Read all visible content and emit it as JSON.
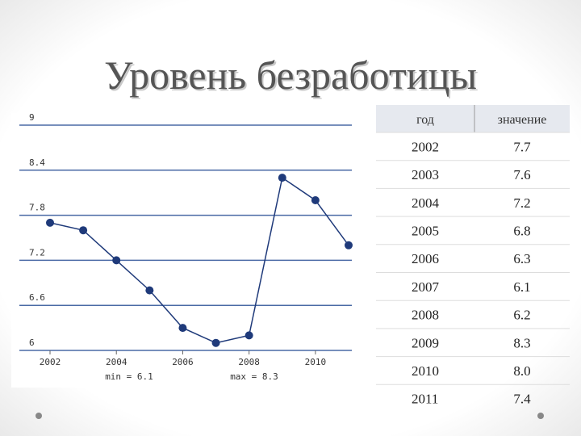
{
  "title": "Уровень безработицы",
  "chart_data": {
    "type": "line",
    "x": [
      2002,
      2003,
      2004,
      2005,
      2006,
      2007,
      2008,
      2009,
      2010,
      2011
    ],
    "values": [
      7.7,
      7.6,
      7.2,
      6.8,
      6.3,
      6.1,
      6.2,
      8.3,
      8.0,
      7.4
    ],
    "color": "#1f3a7a",
    "xlim": [
      2002,
      2011
    ],
    "xticks": [
      2002,
      2004,
      2006,
      2008,
      2010
    ],
    "ylim": [
      6,
      9
    ],
    "yticks": [
      6,
      6.6,
      7.2,
      7.8,
      8.4,
      9
    ],
    "grid": true,
    "annotations": [
      "min = 6.1",
      "max = 8.3"
    ]
  },
  "table": {
    "header": [
      "год",
      "значение"
    ],
    "rows": [
      [
        "2002",
        "7.7"
      ],
      [
        "2003",
        "7.6"
      ],
      [
        "2004",
        "7.2"
      ],
      [
        "2005",
        "6.8"
      ],
      [
        "2006",
        "6.3"
      ],
      [
        "2007",
        "6.1"
      ],
      [
        "2008",
        "6.2"
      ],
      [
        "2009",
        "8.3"
      ],
      [
        "2010",
        "8.0"
      ],
      [
        "2011",
        "7.4"
      ]
    ]
  }
}
